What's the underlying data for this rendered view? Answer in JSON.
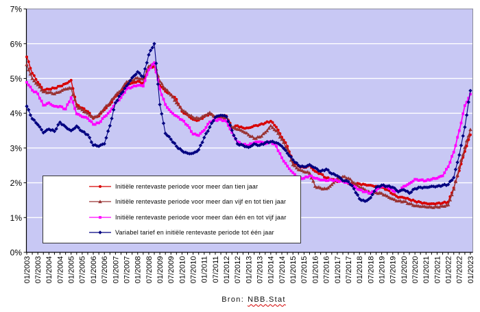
{
  "source_note": {
    "prefix": "Bron:",
    "name": "NBB.Stat"
  },
  "chart_data": {
    "type": "line",
    "title": "",
    "xlabel": "",
    "ylabel": "",
    "ylim": [
      0,
      7
    ],
    "y_tick_labels": [
      "0%",
      "1%",
      "2%",
      "3%",
      "4%",
      "5%",
      "6%",
      "7%"
    ],
    "x_start": "01/2003",
    "x_end": "01/2023",
    "sample_interval_months": 3,
    "x_tick_labels": [
      "01/2003",
      "07/2003",
      "01/2004",
      "07/2004",
      "01/2005",
      "07/2005",
      "01/2006",
      "07/2006",
      "01/2007",
      "07/2007",
      "01/2008",
      "07/2008",
      "01/2009",
      "07/2009",
      "01/2010",
      "07/2010",
      "01/2011",
      "07/2011",
      "01/2012",
      "07/2012",
      "01/2013",
      "07/2013",
      "01/2014",
      "07/2014",
      "01/2015",
      "07/2015",
      "01/2016",
      "07/2016",
      "01/2017",
      "07/2017",
      "01/2018",
      "07/2018",
      "01/2019",
      "07/2019",
      "01/2020",
      "07/2020",
      "01/2021",
      "07/2021",
      "01/2022",
      "07/2022",
      "01/2023"
    ],
    "plot_bg": "#C8C8F4",
    "gridline_color": "#FFFFFF",
    "grid": true,
    "legend_position": "inside-bottom-left",
    "series": [
      {
        "name": "Initiële rentevaste periode voor meer dan tien jaar",
        "color": "#D80000",
        "marker": "circle",
        "values": [
          5.62,
          5.15,
          4.89,
          4.66,
          4.69,
          4.72,
          4.78,
          4.85,
          4.95,
          4.25,
          4.15,
          4.05,
          3.85,
          3.92,
          4.1,
          4.25,
          4.48,
          4.62,
          4.83,
          4.87,
          4.92,
          4.87,
          5.29,
          5.35,
          4.8,
          4.63,
          4.53,
          4.4,
          4.05,
          3.95,
          3.82,
          3.8,
          3.9,
          3.98,
          3.88,
          3.92,
          3.92,
          3.58,
          3.64,
          3.58,
          3.58,
          3.64,
          3.67,
          3.72,
          3.77,
          3.6,
          3.31,
          3.05,
          2.6,
          2.48,
          2.44,
          2.5,
          2.33,
          2.26,
          2.14,
          2.1,
          2.03,
          2.05,
          1.98,
          1.97,
          1.97,
          1.95,
          1.93,
          1.9,
          1.87,
          1.8,
          1.67,
          1.58,
          1.57,
          1.52,
          1.47,
          1.44,
          1.41,
          1.4,
          1.41,
          1.42,
          1.45,
          1.85,
          2.35,
          2.9,
          3.38
        ]
      },
      {
        "name": "Initiële rentevaste periode voor meer dan vijf en tot tien jaar",
        "color": "#993333",
        "marker": "triangle",
        "values": [
          5.4,
          5.0,
          4.82,
          4.62,
          4.6,
          4.56,
          4.62,
          4.7,
          4.72,
          4.2,
          4.1,
          4.0,
          3.88,
          3.96,
          4.15,
          4.3,
          4.52,
          4.66,
          4.9,
          4.95,
          5.02,
          4.98,
          5.35,
          5.45,
          4.92,
          4.7,
          4.53,
          4.3,
          4.1,
          3.98,
          3.88,
          3.85,
          3.93,
          4.02,
          3.9,
          3.88,
          3.88,
          3.6,
          3.54,
          3.48,
          3.38,
          3.28,
          3.32,
          3.45,
          3.64,
          3.5,
          3.25,
          2.95,
          2.52,
          2.38,
          2.32,
          2.28,
          1.9,
          1.85,
          1.83,
          1.95,
          2.13,
          2.18,
          2.13,
          2.0,
          1.87,
          1.8,
          1.7,
          1.72,
          1.7,
          1.62,
          1.54,
          1.48,
          1.47,
          1.4,
          1.34,
          1.32,
          1.31,
          1.3,
          1.31,
          1.33,
          1.37,
          1.82,
          2.45,
          3.02,
          3.53
        ]
      },
      {
        "name": "Initiële rentevaste periode voor meer dan één en tot vijf jaar",
        "color": "#FF00FF",
        "marker": "square",
        "values": [
          4.89,
          4.66,
          4.56,
          4.23,
          4.3,
          4.2,
          4.2,
          4.12,
          4.45,
          3.98,
          3.9,
          3.85,
          3.68,
          3.72,
          3.9,
          4.05,
          4.3,
          4.45,
          4.7,
          4.75,
          4.8,
          4.78,
          5.25,
          5.45,
          4.7,
          4.25,
          4.04,
          3.92,
          3.81,
          3.65,
          3.4,
          3.36,
          3.51,
          3.75,
          3.8,
          3.82,
          3.77,
          3.45,
          3.18,
          3.1,
          3.08,
          3.15,
          3.18,
          3.12,
          3.18,
          3.05,
          2.72,
          2.48,
          2.29,
          2.15,
          2.13,
          2.2,
          2.13,
          2.08,
          2.06,
          2.08,
          2.06,
          2.04,
          2.0,
          1.9,
          1.8,
          1.74,
          1.7,
          1.78,
          1.9,
          1.88,
          1.77,
          1.75,
          1.9,
          1.98,
          2.1,
          2.08,
          2.06,
          2.1,
          2.13,
          2.2,
          2.46,
          2.88,
          3.5,
          4.22,
          4.55
        ]
      },
      {
        "name": "Variabel tarief en initiële rentevaste periode tot één jaar",
        "color": "#000080",
        "marker": "diamond",
        "values": [
          4.2,
          3.84,
          3.67,
          3.44,
          3.54,
          3.48,
          3.74,
          3.61,
          3.5,
          3.63,
          3.48,
          3.38,
          3.08,
          3.05,
          3.12,
          3.64,
          4.3,
          4.56,
          4.79,
          5.02,
          5.19,
          5.05,
          5.68,
          6.0,
          4.25,
          3.42,
          3.25,
          3.05,
          2.92,
          2.85,
          2.85,
          2.95,
          3.3,
          3.6,
          3.88,
          3.94,
          3.9,
          3.51,
          3.12,
          3.08,
          3.02,
          3.12,
          3.08,
          3.15,
          3.18,
          3.15,
          3.05,
          2.85,
          2.66,
          2.5,
          2.46,
          2.52,
          2.43,
          2.33,
          2.39,
          2.26,
          2.2,
          2.06,
          2.03,
          1.83,
          1.54,
          1.47,
          1.57,
          1.87,
          1.93,
          1.9,
          1.87,
          1.74,
          1.8,
          1.7,
          1.83,
          1.87,
          1.87,
          1.9,
          1.9,
          1.93,
          1.95,
          2.15,
          2.8,
          3.6,
          4.65
        ]
      }
    ]
  }
}
